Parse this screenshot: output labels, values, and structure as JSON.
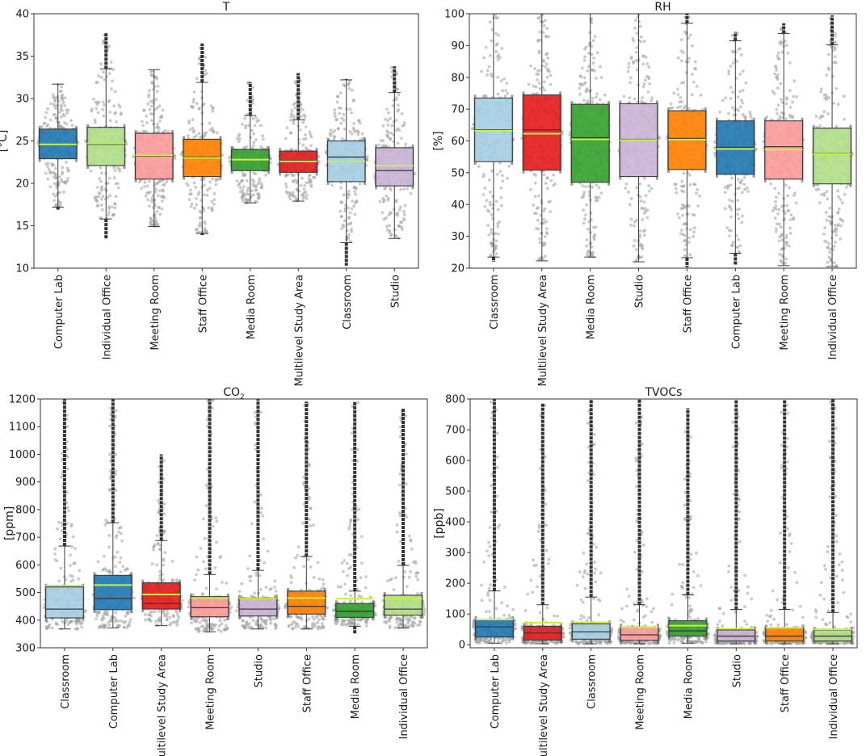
{
  "colors": {
    "Computer Lab": "#1f78b4",
    "Individual Office": "#b2df8a",
    "Meeting Room": "#fb9a99",
    "Staff Office": "#ff7f00",
    "Media Room": "#33a02c",
    "Multilevel Study Area": "#e31a1c",
    "Classroom": "#a6cee3",
    "Studio": "#cab2d6",
    "mean_line": "#c8f03c",
    "box_edge": "#3a3a3a",
    "swarm": "#9e9e9e"
  },
  "chart_data": [
    {
      "id": "T",
      "type": "box",
      "title": "T",
      "ylabel": "[°C]",
      "ylim": [
        10,
        40
      ],
      "yticks": [
        10,
        15,
        20,
        25,
        30,
        35,
        40
      ],
      "categories": [
        "Computer Lab",
        "Individual Office",
        "Meeting Room",
        "Staff Office",
        "Media Room",
        "Multilevel Study Area",
        "Classroom",
        "Studio"
      ],
      "boxes": [
        {
          "q1": 22.9,
          "median": 24.6,
          "q3": 26.4,
          "mean": 24.6,
          "wlo": 17.2,
          "whi": 31.7,
          "fmin": 16.9,
          "fmax": 31.7
        },
        {
          "q1": 22.1,
          "median": 24.6,
          "q3": 26.6,
          "mean": 24.7,
          "wlo": 15.8,
          "whi": 33.5,
          "fmin": 13.4,
          "fmax": 37.8
        },
        {
          "q1": 20.5,
          "median": 23.2,
          "q3": 25.9,
          "mean": 23.3,
          "wlo": 14.9,
          "whi": 33.4,
          "fmin": 14.9,
          "fmax": 33.4
        },
        {
          "q1": 20.8,
          "median": 23.1,
          "q3": 25.2,
          "mean": 23.0,
          "wlo": 14.1,
          "whi": 31.9,
          "fmin": 13.9,
          "fmax": 36.5
        },
        {
          "q1": 21.5,
          "median": 22.8,
          "q3": 24.0,
          "mean": 22.8,
          "wlo": 17.7,
          "whi": 28.0,
          "fmin": 17.7,
          "fmax": 31.9
        },
        {
          "q1": 21.3,
          "median": 22.7,
          "q3": 23.8,
          "mean": 22.6,
          "wlo": 17.9,
          "whi": 27.5,
          "fmin": 17.9,
          "fmax": 33.0
        },
        {
          "q1": 20.2,
          "median": 23.1,
          "q3": 25.0,
          "mean": 22.6,
          "wlo": 13.0,
          "whi": 32.2,
          "fmin": 10.3,
          "fmax": 32.3
        },
        {
          "q1": 19.7,
          "median": 21.5,
          "q3": 24.2,
          "mean": 22.1,
          "wlo": 13.5,
          "whi": 30.7,
          "fmin": 13.5,
          "fmax": 33.8
        }
      ]
    },
    {
      "id": "RH",
      "type": "box",
      "title": "RH",
      "ylabel": "[%]",
      "ylim": [
        20,
        100
      ],
      "yticks": [
        20,
        30,
        40,
        50,
        60,
        70,
        80,
        90,
        100
      ],
      "categories": [
        "Classroom",
        "Multilevel Study Area",
        "Media Room",
        "Studio",
        "Staff Office",
        "Computer Lab",
        "Meeting Room",
        "Individual Office"
      ],
      "boxes": [
        {
          "q1": 53.5,
          "median": 63.5,
          "q3": 73.5,
          "mean": 63.2,
          "wlo": 23.5,
          "whi": 100,
          "fmin": 22.0,
          "fmax": 100
        },
        {
          "q1": 50.8,
          "median": 63.5,
          "q3": 74.5,
          "mean": 62.3,
          "wlo": 22.3,
          "whi": 100,
          "fmin": 22.3,
          "fmax": 100
        },
        {
          "q1": 47.0,
          "median": 61.0,
          "q3": 71.5,
          "mean": 60.5,
          "wlo": 23.5,
          "whi": 100,
          "fmin": 23.5,
          "fmax": 98.5
        },
        {
          "q1": 48.8,
          "median": 60.5,
          "q3": 71.7,
          "mean": 60.3,
          "wlo": 22.0,
          "whi": 100,
          "fmin": 22.0,
          "fmax": 100
        },
        {
          "q1": 51.0,
          "median": 60.8,
          "q3": 69.5,
          "mean": 60.4,
          "wlo": 23.3,
          "whi": 97.0,
          "fmin": 20.3,
          "fmax": 100
        },
        {
          "q1": 49.5,
          "median": 58.0,
          "q3": 66.3,
          "mean": 57.5,
          "wlo": 24.7,
          "whi": 91.5,
          "fmin": 21.0,
          "fmax": 94.3
        },
        {
          "q1": 48.0,
          "median": 58.2,
          "q3": 66.3,
          "mean": 57.3,
          "wlo": 20.8,
          "whi": 93.8,
          "fmin": 20.8,
          "fmax": 97.0
        },
        {
          "q1": 46.5,
          "median": 56.0,
          "q3": 64.0,
          "mean": 55.8,
          "wlo": 20.5,
          "whi": 90.2,
          "fmin": 20.5,
          "fmax": 99.5
        }
      ]
    },
    {
      "id": "CO2",
      "type": "box",
      "title": "CO",
      "title_subscript": "2",
      "ylabel": "[ppm]",
      "ylim": [
        300,
        1200
      ],
      "yticks": [
        300,
        400,
        500,
        600,
        700,
        800,
        900,
        1000,
        1100,
        1200
      ],
      "categories": [
        "Classroom",
        "Computer Lab",
        "Multilevel Study Area",
        "Meeting Room",
        "Studio",
        "Staff Office",
        "Media Room",
        "Individual Office"
      ],
      "boxes": [
        {
          "q1": 408,
          "median": 440,
          "q3": 520,
          "mean": 525,
          "wlo": 368,
          "whi": 668,
          "fmin": 368,
          "fmax": 1200
        },
        {
          "q1": 438,
          "median": 478,
          "q3": 562,
          "mean": 527,
          "wlo": 372,
          "whi": 752,
          "fmin": 372,
          "fmax": 1200
        },
        {
          "q1": 440,
          "median": 460,
          "q3": 535,
          "mean": 493,
          "wlo": 380,
          "whi": 688,
          "fmin": 380,
          "fmax": 1000
        },
        {
          "q1": 412,
          "median": 445,
          "q3": 485,
          "mean": 480,
          "wlo": 358,
          "whi": 565,
          "fmin": 358,
          "fmax": 1200
        },
        {
          "q1": 415,
          "median": 440,
          "q3": 480,
          "mean": 478,
          "wlo": 368,
          "whi": 580,
          "fmin": 368,
          "fmax": 1200
        },
        {
          "q1": 422,
          "median": 450,
          "q3": 505,
          "mean": 480,
          "wlo": 368,
          "whi": 630,
          "fmin": 368,
          "fmax": 1190
        },
        {
          "q1": 410,
          "median": 432,
          "q3": 460,
          "mean": 478,
          "wlo": 378,
          "whi": 505,
          "fmin": 350,
          "fmax": 1190
        },
        {
          "q1": 418,
          "median": 440,
          "q3": 490,
          "mean": 478,
          "wlo": 372,
          "whi": 598,
          "fmin": 372,
          "fmax": 1165
        }
      ]
    },
    {
      "id": "TVOCs",
      "type": "box",
      "title": "TVOCs",
      "ylabel": "[ppb]",
      "ylim": [
        -10,
        800
      ],
      "yticks": [
        0,
        100,
        200,
        300,
        400,
        500,
        600,
        700,
        800
      ],
      "categories": [
        "Computer Lab",
        "Multilevel Study Area",
        "Classroom",
        "Meeting Room",
        "Media Room",
        "Studio",
        "Staff Office",
        "Individual Office"
      ],
      "boxes": [
        {
          "q1": 25,
          "median": 58,
          "q3": 82,
          "mean": 82,
          "wlo": 5,
          "whi": 175,
          "fmin": 5,
          "fmax": 800
        },
        {
          "q1": 15,
          "median": 38,
          "q3": 60,
          "mean": 72,
          "wlo": 3,
          "whi": 130,
          "fmin": 3,
          "fmax": 785
        },
        {
          "q1": 18,
          "median": 42,
          "q3": 68,
          "mean": 73,
          "wlo": 3,
          "whi": 155,
          "fmin": 3,
          "fmax": 800
        },
        {
          "q1": 14,
          "median": 32,
          "q3": 58,
          "mean": 57,
          "wlo": 3,
          "whi": 130,
          "fmin": 3,
          "fmax": 800
        },
        {
          "q1": 28,
          "median": 45,
          "q3": 78,
          "mean": 62,
          "wlo": 5,
          "whi": 162,
          "fmin": 5,
          "fmax": 770
        },
        {
          "q1": 12,
          "median": 28,
          "q3": 48,
          "mean": 52,
          "wlo": 3,
          "whi": 115,
          "fmin": 3,
          "fmax": 800
        },
        {
          "q1": 12,
          "median": 28,
          "q3": 55,
          "mean": 55,
          "wlo": 3,
          "whi": 115,
          "fmin": 3,
          "fmax": 800
        },
        {
          "q1": 12,
          "median": 28,
          "q3": 48,
          "mean": 50,
          "wlo": 3,
          "whi": 105,
          "fmin": 3,
          "fmax": 800
        }
      ]
    }
  ]
}
